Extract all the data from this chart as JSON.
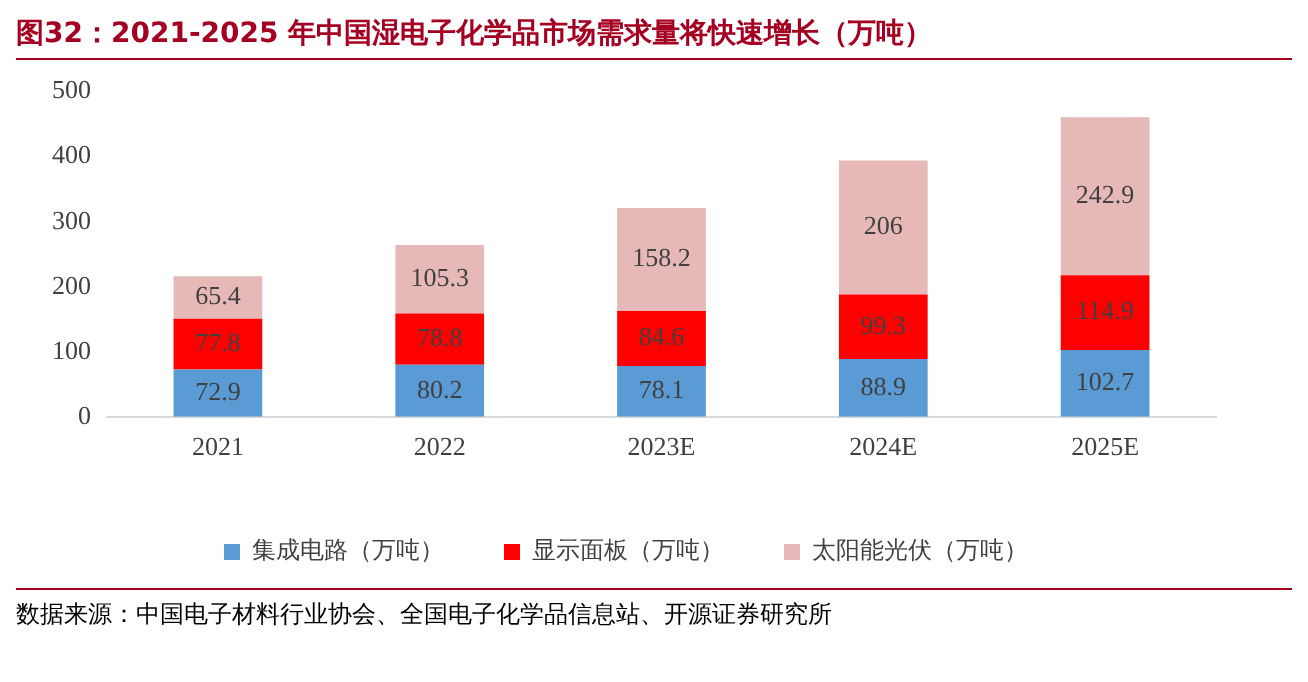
{
  "chart_data": {
    "type": "bar",
    "title": "图32：2021-2025 年中国湿电子化学品市场需求量将快速增长（万吨）",
    "categories": [
      "2021",
      "2022",
      "2023E",
      "2024E",
      "2025E"
    ],
    "series": [
      {
        "name": "集成电路（万吨）",
        "color": "#5b9bd5",
        "values": [
          72.9,
          80.2,
          78.1,
          88.9,
          102.7
        ]
      },
      {
        "name": "显示面板（万吨）",
        "color": "#ff0000",
        "values": [
          77.8,
          78.8,
          84.6,
          99.3,
          114.9
        ]
      },
      {
        "name": "太阳能光伏（万吨）",
        "color": "#e6b9b8",
        "values": [
          65.4,
          105.3,
          158.2,
          206,
          242.9
        ]
      }
    ],
    "stacked": true,
    "data_labels": true,
    "ylim": [
      0,
      500
    ],
    "yticks": [
      0,
      100,
      200,
      300,
      400,
      500
    ],
    "grid": false,
    "legend": "bottom",
    "annotations": [
      "数据来源：中国电子材料行业协会、全国电子化学品信息站、开源证券研究所"
    ]
  }
}
